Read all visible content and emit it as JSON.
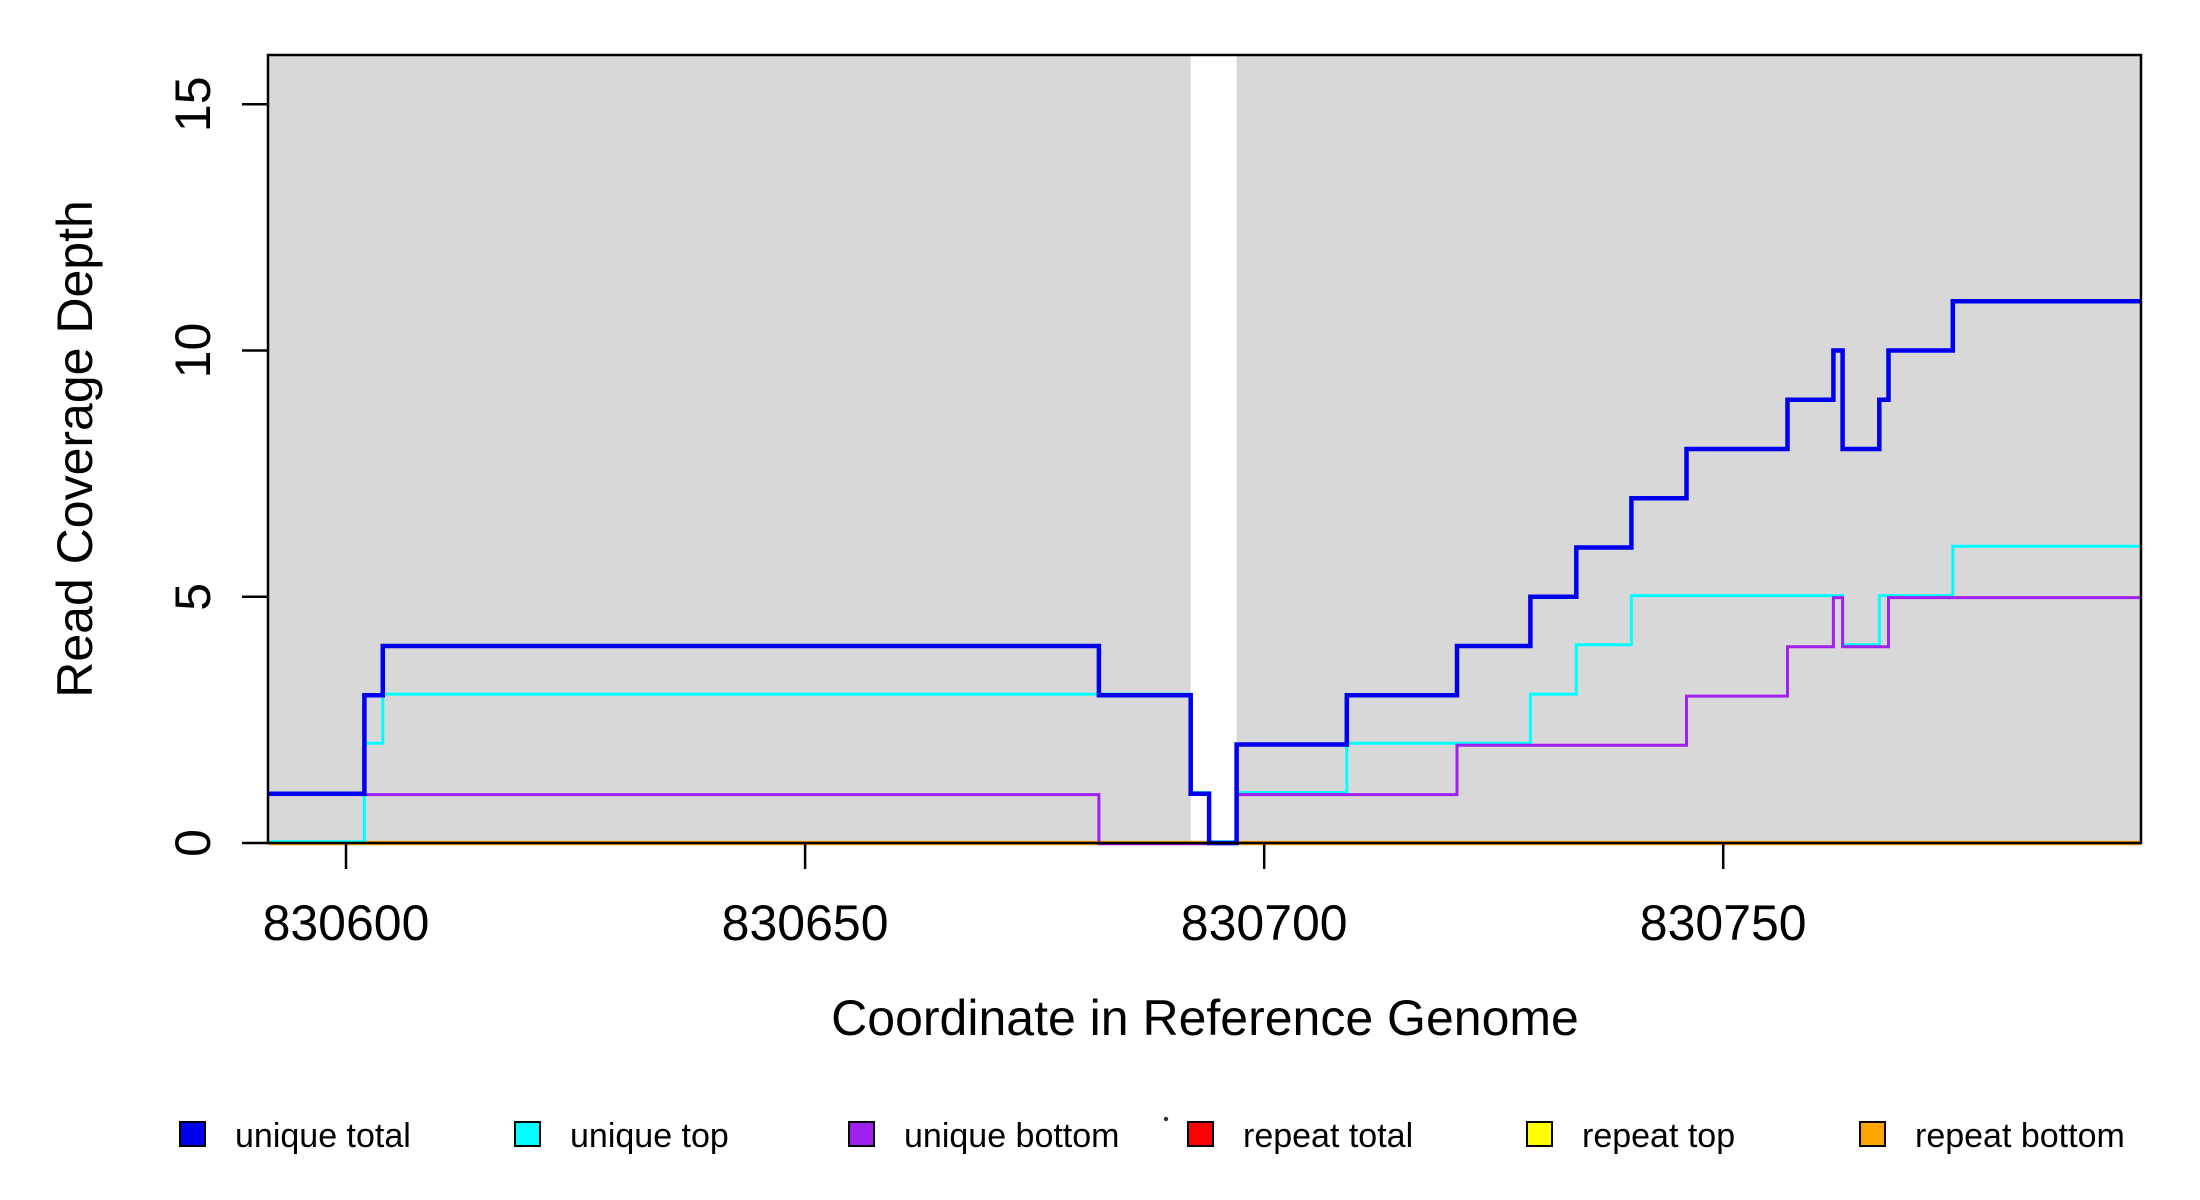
{
  "chart_data": {
    "type": "line",
    "subtype": "step-coverage",
    "x_label": "Coordinate in Reference Genome",
    "y_label": "Read Coverage Depth",
    "x_range": [
      830591.5,
      830795.5
    ],
    "y_range": [
      0,
      16
    ],
    "x_ticks": [
      830600,
      830650,
      830700,
      830750
    ],
    "x_tick_labels": [
      "830600",
      "830650",
      "830700",
      "830750"
    ],
    "y_ticks": [
      0,
      5,
      10,
      15
    ],
    "y_tick_labels": [
      "0",
      "5",
      "10",
      "15"
    ],
    "grid": "off",
    "panel_bg": "#D8D8D8",
    "panel_segments": [
      [
        830591.5,
        830692
      ],
      [
        830697,
        830795.5
      ]
    ],
    "masked_gap": [
      830692,
      830697
    ],
    "series": [
      {
        "name": "unique total",
        "color": "#0000EE",
        "lwd": 4.5,
        "steps": [
          [
            830592,
            1
          ],
          [
            830602,
            3
          ],
          [
            830604,
            4
          ],
          [
            830682,
            3
          ],
          [
            830692,
            1
          ],
          [
            830694,
            0
          ],
          [
            830697,
            2
          ],
          [
            830709,
            3
          ],
          [
            830721,
            4
          ],
          [
            830729,
            5
          ],
          [
            830734,
            6
          ],
          [
            830740,
            7
          ],
          [
            830746,
            8
          ],
          [
            830757,
            9
          ],
          [
            830762,
            10
          ],
          [
            830763,
            8
          ],
          [
            830767,
            9
          ],
          [
            830768,
            10
          ],
          [
            830775,
            11
          ]
        ]
      },
      {
        "name": "unique top",
        "color": "#00FFFF",
        "lwd": 3,
        "steps": [
          [
            830592,
            0
          ],
          [
            830602,
            2
          ],
          [
            830604,
            3
          ],
          [
            830692,
            1
          ],
          [
            830694,
            0
          ],
          [
            830697,
            1
          ],
          [
            830709,
            2
          ],
          [
            830729,
            3
          ],
          [
            830734,
            4
          ],
          [
            830740,
            5
          ],
          [
            830763,
            4
          ],
          [
            830767,
            5
          ],
          [
            830775,
            6
          ]
        ]
      },
      {
        "name": "unique bottom",
        "color": "#A020F0",
        "lwd": 3,
        "steps": [
          [
            830592,
            1
          ],
          [
            830682,
            0
          ],
          [
            830697,
            1
          ],
          [
            830721,
            2
          ],
          [
            830746,
            3
          ],
          [
            830757,
            4
          ],
          [
            830762,
            5
          ],
          [
            830763,
            4
          ],
          [
            830768,
            5
          ]
        ]
      },
      {
        "name": "repeat total",
        "color": "#FF0000",
        "lwd": 3,
        "steps": [
          [
            830592,
            0
          ]
        ]
      },
      {
        "name": "repeat top",
        "color": "#FFFF00",
        "lwd": 3,
        "steps": [
          [
            830592,
            0
          ]
        ]
      },
      {
        "name": "repeat bottom",
        "color": "#FFA500",
        "lwd": 4.5,
        "steps": [
          [
            830592,
            0
          ]
        ]
      }
    ]
  },
  "legend": {
    "items": [
      {
        "label": "unique total",
        "color": "#0000EE"
      },
      {
        "label": "unique top",
        "color": "#00FFFF"
      },
      {
        "label": "unique bottom",
        "color": "#A020F0"
      },
      {
        "label": "repeat total",
        "color": "#FF0000"
      },
      {
        "label": "repeat top",
        "color": "#FFFF00"
      },
      {
        "label": "repeat bottom",
        "color": "#FFA500"
      }
    ]
  }
}
